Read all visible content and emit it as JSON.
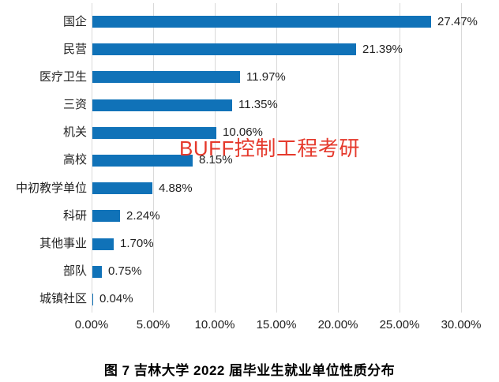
{
  "chart_data": {
    "type": "bar",
    "orientation": "horizontal",
    "categories": [
      "国企",
      "民营",
      "医疗卫生",
      "三资",
      "机关",
      "高校",
      "中初教学单位",
      "科研",
      "其他事业",
      "部队",
      "城镇社区"
    ],
    "values": [
      27.47,
      21.39,
      11.97,
      11.35,
      10.06,
      8.15,
      4.88,
      2.24,
      1.7,
      0.75,
      0.04
    ],
    "value_labels": [
      "27.47%",
      "21.39%",
      "11.97%",
      "11.35%",
      "10.06%",
      "8.15%",
      "4.88%",
      "2.24%",
      "1.70%",
      "0.75%",
      "0.04%"
    ],
    "x_ticks": [
      0,
      5,
      10,
      15,
      20,
      25,
      30
    ],
    "x_tick_labels": [
      "0.00%",
      "5.00%",
      "10.00%",
      "15.00%",
      "20.00%",
      "25.00%",
      "30.00%"
    ],
    "xlim": [
      0,
      30
    ],
    "grid": true,
    "legend": "none",
    "bar_color": "#1072b8",
    "gridline_color": "#d9d9d9"
  },
  "caption": "图 7 吉林大学 2022 届毕业生就业单位性质分布",
  "watermark": {
    "text": "BUFF控制工程考研",
    "color": "#e5392c"
  }
}
